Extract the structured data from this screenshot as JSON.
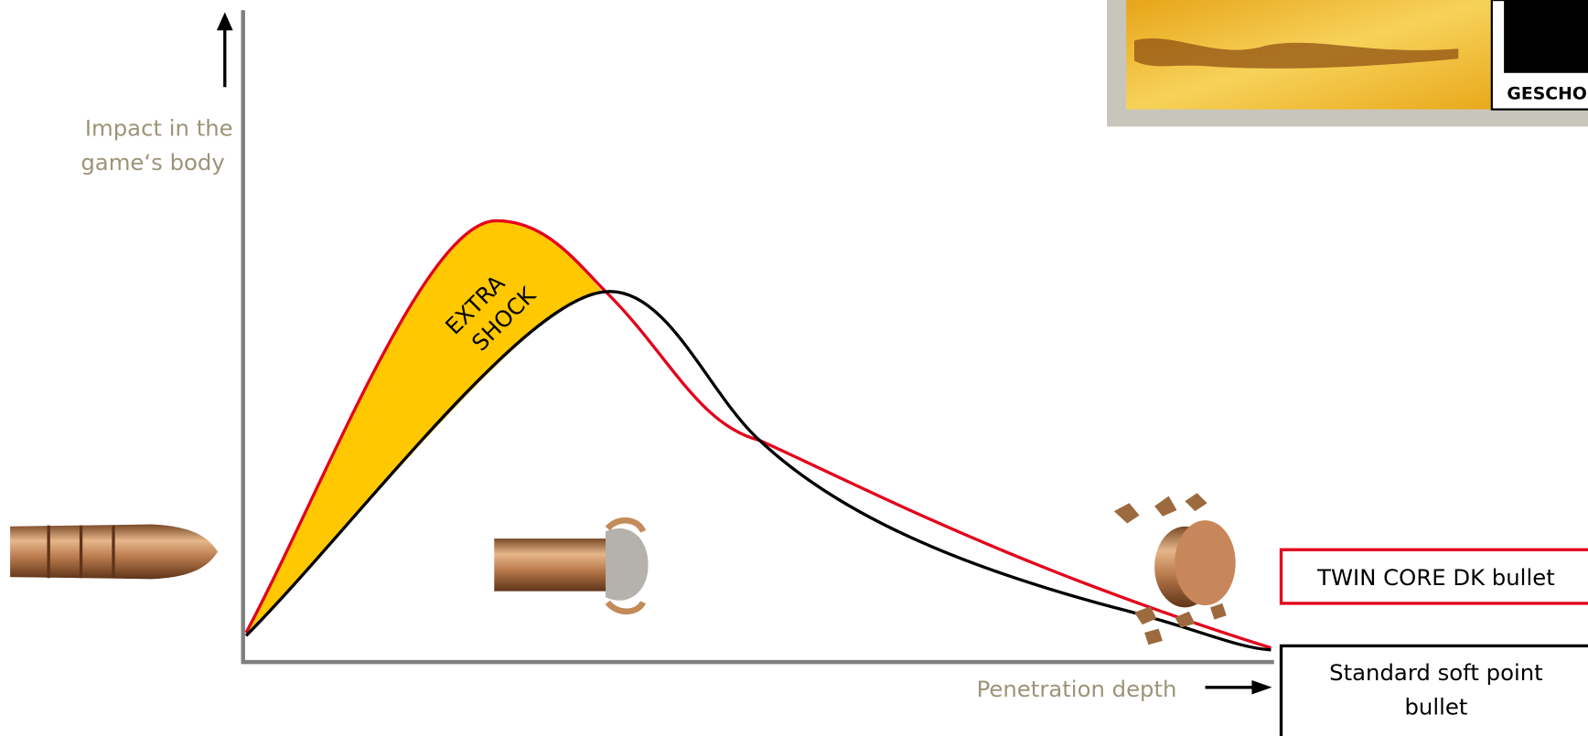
{
  "y_axis_label": [
    "Impact in the",
    "game‘s body"
  ],
  "x_axis_label": "Penetration depth",
  "annotation": [
    "EXTRA",
    "SHOCK"
  ],
  "legend": [
    {
      "label": [
        "TWIN CORE DK bullet"
      ]
    },
    {
      "label": [
        "Standard soft point",
        "bullet"
      ]
    }
  ],
  "logo": {
    "text": "GESCHO"
  }
}
